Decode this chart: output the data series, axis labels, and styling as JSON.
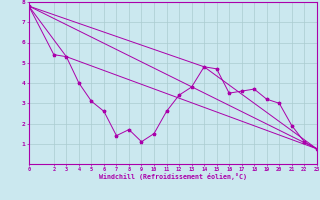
{
  "background_color": "#cbe8ef",
  "grid_color": "#aaccd0",
  "line_color": "#aa00aa",
  "marker": "*",
  "xlabel": "Windchill (Refroidissement éolien,°C)",
  "xlabel_color": "#aa00aa",
  "tick_color": "#aa00aa",
  "xlim": [
    0,
    23
  ],
  "ylim": [
    0,
    8
  ],
  "series": [
    [
      0,
      7.8
    ],
    [
      2,
      5.4
    ],
    [
      3,
      5.3
    ],
    [
      4,
      4.0
    ],
    [
      5,
      3.1
    ],
    [
      6,
      2.6
    ],
    [
      7,
      1.4
    ],
    [
      8,
      1.7
    ],
    [
      9,
      1.1
    ],
    [
      10,
      1.5
    ],
    [
      11,
      2.6
    ],
    [
      12,
      3.4
    ],
    [
      13,
      3.8
    ],
    [
      14,
      4.8
    ],
    [
      15,
      4.7
    ],
    [
      16,
      3.5
    ],
    [
      17,
      3.6
    ],
    [
      18,
      3.7
    ],
    [
      19,
      3.2
    ],
    [
      20,
      3.0
    ],
    [
      21,
      1.9
    ],
    [
      22,
      1.1
    ],
    [
      23,
      0.75
    ]
  ],
  "line2": [
    [
      0,
      7.8
    ],
    [
      3,
      5.3
    ],
    [
      23,
      0.75
    ]
  ],
  "line3": [
    [
      0,
      7.8
    ],
    [
      14,
      4.8
    ],
    [
      23,
      0.75
    ]
  ],
  "line4": [
    [
      0,
      7.8
    ],
    [
      23,
      0.75
    ]
  ],
  "xticks": [
    0,
    2,
    3,
    4,
    5,
    6,
    7,
    8,
    9,
    10,
    11,
    12,
    13,
    14,
    15,
    16,
    17,
    18,
    19,
    20,
    21,
    22,
    23
  ],
  "yticks": [
    1,
    2,
    3,
    4,
    5,
    6,
    7,
    8
  ]
}
